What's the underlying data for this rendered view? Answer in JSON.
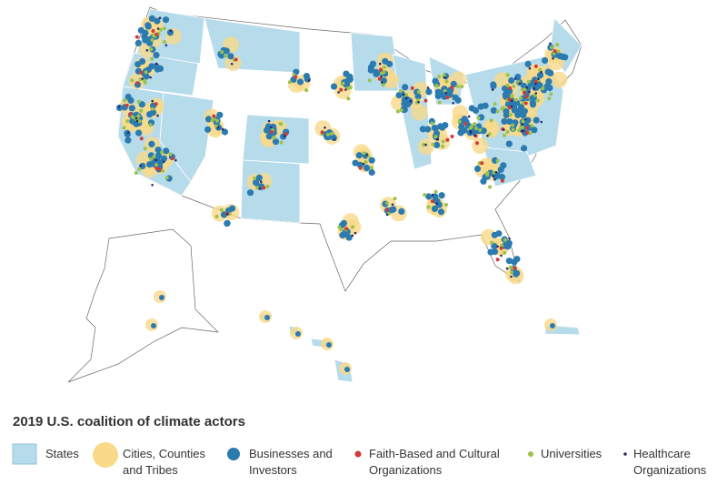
{
  "legend": {
    "title": "2019 U.S. coalition of climate actors",
    "items": [
      {
        "lines": [
          "States"
        ]
      },
      {
        "lines": [
          "Cities, Counties",
          "and Tribes"
        ]
      },
      {
        "lines": [
          "Businesses and",
          "Investors"
        ]
      },
      {
        "lines": [
          "Faith-Based and Cultural",
          "Organizations"
        ]
      },
      {
        "lines": [
          "Universities"
        ]
      },
      {
        "lines": [
          "Healthcare",
          "Organizations"
        ]
      }
    ]
  }
}
